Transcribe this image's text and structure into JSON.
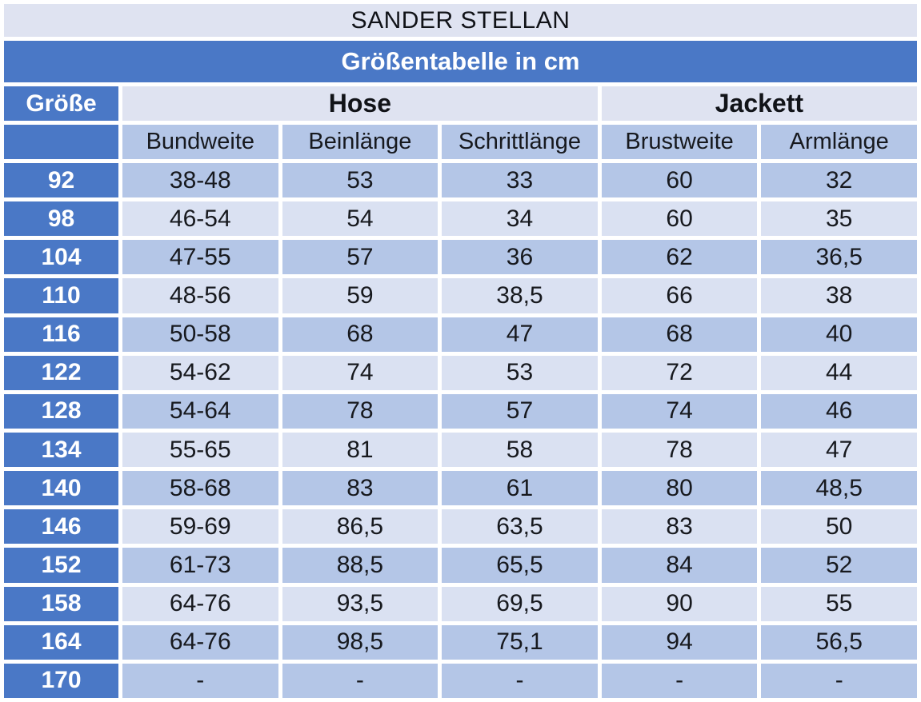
{
  "chart_data": {
    "type": "table",
    "title": "SANDER STELLAN",
    "subtitle": "Größentabelle in cm",
    "size_header": "Größe",
    "groups": [
      {
        "label": "Hose",
        "columns": [
          "Bundweite",
          "Beinlänge",
          "Schrittlänge"
        ]
      },
      {
        "label": "Jackett",
        "columns": [
          "Brustweite",
          "Armlänge"
        ]
      }
    ],
    "columns": [
      "Bundweite",
      "Beinlänge",
      "Schrittlänge",
      "Brustweite",
      "Armlänge"
    ],
    "rows": [
      {
        "size": "92",
        "values": [
          "38-48",
          "53",
          "33",
          "60",
          "32"
        ]
      },
      {
        "size": "98",
        "values": [
          "46-54",
          "54",
          "34",
          "60",
          "35"
        ]
      },
      {
        "size": "104",
        "values": [
          "47-55",
          "57",
          "36",
          "62",
          "36,5"
        ]
      },
      {
        "size": "110",
        "values": [
          "48-56",
          "59",
          "38,5",
          "66",
          "38"
        ]
      },
      {
        "size": "116",
        "values": [
          "50-58",
          "68",
          "47",
          "68",
          "40"
        ]
      },
      {
        "size": "122",
        "values": [
          "54-62",
          "74",
          "53",
          "72",
          "44"
        ]
      },
      {
        "size": "128",
        "values": [
          "54-64",
          "78",
          "57",
          "74",
          "46"
        ]
      },
      {
        "size": "134",
        "values": [
          "55-65",
          "81",
          "58",
          "78",
          "47"
        ]
      },
      {
        "size": "140",
        "values": [
          "58-68",
          "83",
          "61",
          "80",
          "48,5"
        ]
      },
      {
        "size": "146",
        "values": [
          "59-69",
          "86,5",
          "63,5",
          "83",
          "50"
        ]
      },
      {
        "size": "152",
        "values": [
          "61-73",
          "88,5",
          "65,5",
          "84",
          "52"
        ]
      },
      {
        "size": "158",
        "values": [
          "64-76",
          "93,5",
          "69,5",
          "90",
          "55"
        ]
      },
      {
        "size": "164",
        "values": [
          "64-76",
          "98,5",
          "75,1",
          "94",
          "56,5"
        ]
      },
      {
        "size": "170",
        "values": [
          "-",
          "-",
          "-",
          "-",
          "-"
        ]
      }
    ]
  },
  "colors": {
    "accent_blue": "#4a78c6",
    "band_dark": "#b4c6e7",
    "band_light": "#dae1f2",
    "header_light": "#dfe3f1",
    "border": "#ffffff",
    "text_dark": "#17191e",
    "text_light": "#ffffff"
  }
}
